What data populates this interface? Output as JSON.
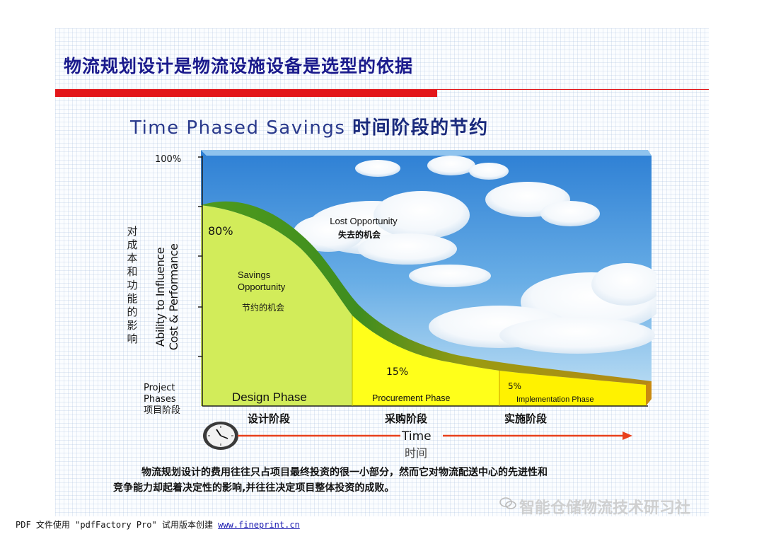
{
  "header": {
    "title": "物流规划设计是物流设施设备是选型的依据",
    "subtitle_en": "Time Phased Savings",
    "subtitle_zh": "时间阶段的节约"
  },
  "chart": {
    "y_axis_label_zh": "对成本和功能的影响",
    "y_axis_label_en_line1": "Ability to Influence",
    "y_axis_label_en_line2": "Cost & Performance",
    "y_tick_top": "100%",
    "x_axis_label_en_line1": "Project",
    "x_axis_label_en_line2": "Phases",
    "x_axis_label_zh": "项目阶段",
    "cloud_label_en": "Lost Opportunity",
    "cloud_label_zh": "失去的机会",
    "savings_label_line1": "Savings",
    "savings_label_line2": "Opportunity",
    "savings_label_zh": "节约的机会",
    "pct_design": "80%",
    "pct_procurement": "15%",
    "pct_implementation": "5%",
    "phase_design_en": "Design Phase",
    "phase_procurement_en": "Procurement Phase",
    "phase_implementation_en": "Implementation Phase",
    "phase_design_zh": "设计阶段",
    "phase_procurement_zh": "采购阶段",
    "phase_implementation_zh": "实施阶段",
    "time_en": "Time",
    "time_zh": "时间",
    "colors": {
      "curve_band": "#4e9a1c",
      "design_fill": "#d2ec5a",
      "procurement_fill": "#ffff00",
      "implementation_fill": "#fff200",
      "arrow": "#e8401c"
    }
  },
  "footnote": {
    "line1": "物流规划设计的费用往往只占项目最终投资的很一小部分，然而它对物流配送中心的先进性和",
    "line2": "竞争能力却起着决定性的影响,并往往决定项目整体投资的成败。"
  },
  "watermark": "智能仓储物流技术研习社",
  "pdf_notice": {
    "text": "PDF 文件使用 \"pdfFactory Pro\" 试用版本创建 ",
    "link": "www.fineprint.cn"
  }
}
